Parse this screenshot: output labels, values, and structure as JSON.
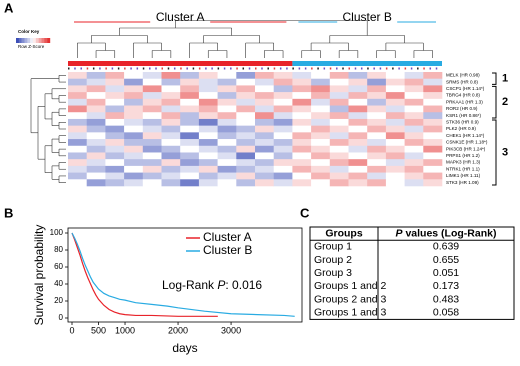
{
  "panel_labels": [
    "A",
    "B",
    "C"
  ],
  "chart_data": [
    {
      "type": "heatmap",
      "color_key": {
        "title": "Color Key",
        "label": "Row Z-Score",
        "zlim": [
          -3,
          3
        ],
        "colors": [
          "#2b3fb0",
          "#ffffff",
          "#e02020"
        ]
      },
      "clusters": [
        {
          "name": "Cluster A",
          "color": "#e8232a",
          "columns": 12
        },
        {
          "name": "Cluster B",
          "color": "#29abe2",
          "columns": 8
        }
      ],
      "rows": [
        "MELK (HR 0.98)",
        "SRMS (HR 0.8)",
        "CSCP1 (HR 1.14*)",
        "TBRG4 (HR 0.8)",
        "PRKAA1 (HR 1.3)",
        "ROR2 (HR 0.9)",
        "KSR1 (HR 0.86*)",
        "STK36 (HR 0.9)",
        "PLK2 (HR 0.9)",
        "CHEK1 (HR 1.14*)",
        "CSNK1E (HR 1.18*)",
        "PIK3CB (HR 1.24*)",
        "PRPS1 (HR 1.2)",
        "MAPK3 (HR 1.3)",
        "NTRK1 (HR 1.1)",
        "LIMK1 (HR 1.11)",
        "STK3 (HR 1.09)"
      ],
      "row_groups": [
        {
          "label": "1",
          "rows": 2
        },
        {
          "label": "2",
          "rows": 5
        },
        {
          "label": "3",
          "rows": 10
        }
      ],
      "values": [
        [
          0.5,
          -1,
          1,
          0,
          -0.5,
          1.5,
          -1,
          0.5,
          0,
          -1.5,
          1,
          0.5,
          -0.5,
          0,
          1,
          -1,
          0.5,
          0,
          -0.5,
          1
        ],
        [
          -1,
          -0.5,
          0.5,
          -1.5,
          0,
          -1,
          0.5,
          -0.5,
          -1,
          0,
          -0.5,
          1,
          0.5,
          -1,
          0,
          0.5,
          -1.5,
          0.5,
          1,
          -0.5
        ],
        [
          0.5,
          1,
          -0.5,
          0.5,
          1.5,
          0,
          1,
          -0.5,
          0.5,
          1,
          0,
          -1,
          1,
          1.5,
          0.5,
          -0.5,
          1,
          0,
          0.5,
          1.5
        ],
        [
          1,
          0,
          0.5,
          1,
          -0.5,
          0.5,
          1.5,
          0,
          -1,
          0.5,
          1,
          0.5,
          0,
          1,
          -0.5,
          1,
          0.5,
          1.5,
          0,
          0.5
        ],
        [
          -0.5,
          1,
          0,
          -1,
          0.5,
          1,
          0,
          1.5,
          0.5,
          -0.5,
          0.5,
          0,
          1.5,
          -0.5,
          1,
          0,
          -1,
          0.5,
          1,
          0
        ],
        [
          1.5,
          0.5,
          -1,
          0.5,
          1,
          -0.5,
          0.5,
          1,
          0,
          1,
          -0.5,
          1,
          0.5,
          0,
          -1,
          1.5,
          0.5,
          -0.5,
          0,
          1
        ],
        [
          0,
          -0.5,
          1,
          0.5,
          0,
          1,
          -1,
          0.5,
          1,
          0,
          1.5,
          -0.5,
          0,
          0.5,
          1,
          -0.5,
          0,
          1,
          0.5,
          -1
        ],
        [
          -1,
          -1.5,
          0,
          -0.5,
          -1,
          0.5,
          -1,
          -2,
          -0.5,
          0,
          -1,
          -1.5,
          0.5,
          -0.5,
          0,
          1,
          0.5,
          -0.5,
          1,
          0.5
        ],
        [
          0.5,
          -1,
          -1.5,
          0,
          -0.5,
          -1,
          0,
          -0.5,
          -1.5,
          -1,
          0.5,
          -0.5,
          0,
          1,
          0.5,
          0,
          1,
          0.5,
          -0.5,
          1
        ],
        [
          -0.5,
          0,
          -1,
          -1.5,
          0.5,
          -0.5,
          -2,
          0,
          -1,
          -0.5,
          -1,
          0,
          1,
          0.5,
          -0.5,
          1,
          0,
          1.5,
          0.5,
          0
        ],
        [
          -1.5,
          -0.5,
          0.5,
          -1,
          -1,
          0,
          -0.5,
          -1.5,
          0,
          -1,
          -0.5,
          -1,
          0.5,
          0,
          1,
          0.5,
          -0.5,
          0,
          1,
          0.5
        ],
        [
          0,
          -1,
          -0.5,
          0.5,
          -1.5,
          -1,
          0,
          -0.5,
          -1,
          0.5,
          -1.5,
          -0.5,
          1,
          0.5,
          0,
          -0.5,
          1,
          0.5,
          0,
          1.5
        ],
        [
          -1,
          0.5,
          -1,
          -0.5,
          0,
          -1.5,
          -1,
          0,
          -0.5,
          -2,
          0,
          -1,
          0,
          1,
          0.5,
          0,
          0.5,
          1,
          -0.5,
          0
        ],
        [
          0.5,
          -0.5,
          0,
          -1,
          -1,
          0.5,
          -1.5,
          -1,
          0,
          -0.5,
          -1,
          0.5,
          0.5,
          0,
          1,
          1.5,
          0,
          -0.5,
          0.5,
          1
        ],
        [
          -0.5,
          -1,
          -1.5,
          0,
          0.5,
          -1,
          -0.5,
          0.5,
          -1.5,
          -1,
          -0.5,
          0,
          1,
          0.5,
          -0.5,
          0,
          1,
          0.5,
          1,
          0
        ],
        [
          -1,
          0,
          -0.5,
          -1.5,
          -1,
          -0.5,
          0,
          -1,
          -0.5,
          0.5,
          -1,
          -1.5,
          0,
          1,
          0.5,
          1,
          -0.5,
          0,
          0.5,
          1
        ],
        [
          0,
          -1.5,
          -1,
          -0.5,
          0,
          -1,
          -2,
          -0.5,
          0,
          -1,
          0.5,
          -0.5,
          0.5,
          0,
          1,
          0.5,
          1,
          0,
          -0.5,
          0.5
        ]
      ]
    },
    {
      "type": "line",
      "x_label": "days",
      "y_label": "Survival probability",
      "xlim": [
        0,
        4300
      ],
      "xticks": [
        0,
        500,
        1000,
        2000,
        3000
      ],
      "ylim": [
        0,
        100
      ],
      "yticks": [
        0,
        20,
        40,
        60,
        80,
        100
      ],
      "legend": "top-right",
      "annotation": {
        "text": "Log-Rank ",
        "italic": "P",
        "suffix": ": 0.016"
      },
      "series": [
        {
          "name": "Cluster A",
          "color": "#e8232a",
          "x": [
            0,
            50,
            100,
            150,
            200,
            250,
            300,
            350,
            400,
            450,
            500,
            600,
            700,
            800,
            900,
            1000,
            1200,
            1500,
            2000,
            2500,
            2750
          ],
          "values": [
            100,
            92,
            83,
            74,
            64,
            55,
            47,
            40,
            33,
            27,
            22,
            15,
            10,
            7,
            5,
            4,
            3,
            3,
            2,
            2,
            2
          ]
        },
        {
          "name": "Cluster B",
          "color": "#29abe2",
          "x": [
            0,
            50,
            100,
            150,
            200,
            250,
            300,
            350,
            400,
            500,
            600,
            700,
            800,
            900,
            1000,
            1200,
            1500,
            1800,
            2000,
            2500,
            3000,
            3500,
            4000,
            4200
          ],
          "values": [
            100,
            94,
            87,
            79,
            70,
            62,
            55,
            48,
            42,
            34,
            29,
            26,
            24,
            22,
            21,
            18,
            16,
            14,
            12,
            8,
            5,
            4,
            3,
            2
          ]
        }
      ]
    }
  ],
  "table": {
    "header": [
      {
        "text": "Groups"
      },
      {
        "italic": "P",
        "text": " values (Log-Rank)"
      }
    ],
    "rows": [
      [
        "Group 1",
        0.639
      ],
      [
        "Group 2",
        0.655
      ],
      [
        "Group 3",
        0.051
      ],
      [
        "Groups 1 and 2",
        0.173
      ],
      [
        "Groups 2 and 3",
        0.483
      ],
      [
        "Groups 1 and 3",
        0.058
      ]
    ]
  }
}
